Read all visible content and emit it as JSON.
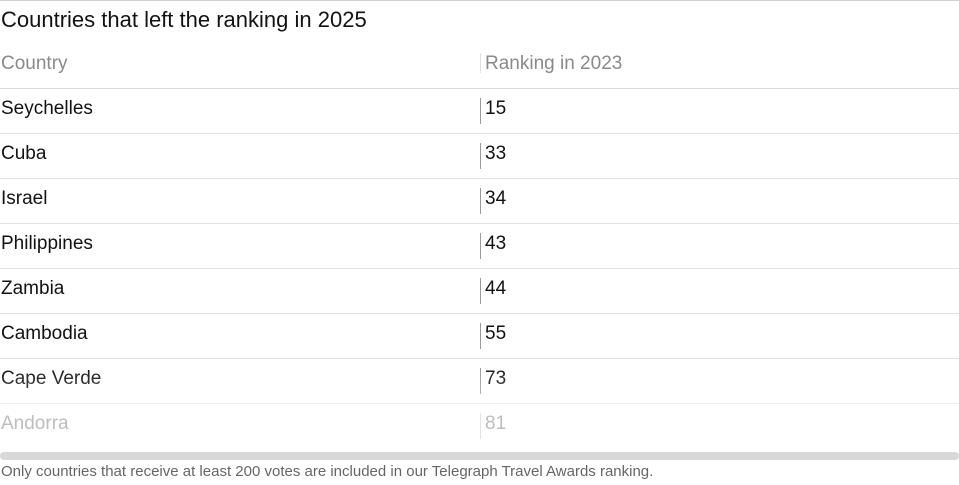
{
  "chart_data": {
    "type": "table",
    "title": "Countries that left the ranking in 2025",
    "columns": [
      "Country",
      "Ranking in 2023"
    ],
    "rows": [
      {
        "country": "Seychelles",
        "ranking_2023": "15"
      },
      {
        "country": "Cuba",
        "ranking_2023": "33"
      },
      {
        "country": "Israel",
        "ranking_2023": "34"
      },
      {
        "country": "Philippines",
        "ranking_2023": "43"
      },
      {
        "country": "Zambia",
        "ranking_2023": "44"
      },
      {
        "country": "Cambodia",
        "ranking_2023": "55"
      },
      {
        "country": "Cape Verde",
        "ranking_2023": "73"
      },
      {
        "country": "Andorra",
        "ranking_2023": "81"
      }
    ],
    "footnote": "Only countries that receive at least 200 votes are included in our Telegraph Travel Awards ranking."
  },
  "colors": {
    "text": "#121212",
    "header_text": "#8a8a8a",
    "faded_text": "#bdbdbd",
    "footnote_text": "#666666",
    "rule": "#e2e2e2"
  }
}
